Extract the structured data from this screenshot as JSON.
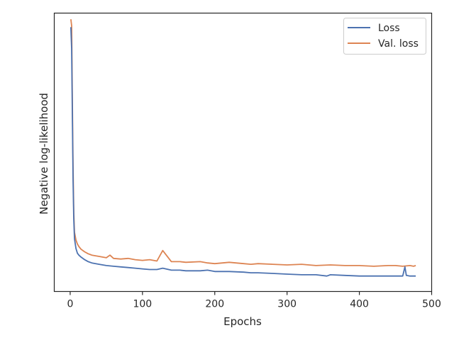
{
  "chart_data": {
    "type": "line",
    "title": "",
    "xlabel": "Epochs",
    "ylabel": "Negative log-likelihood",
    "xlim": [
      -22,
      500
    ],
    "x_ticks": [
      0,
      100,
      200,
      300,
      400,
      500
    ],
    "y_ticks_shown": false,
    "grid": false,
    "legend_position": "upper right",
    "series": [
      {
        "name": "Loss",
        "color": "#4c72b0",
        "x": [
          1,
          2,
          3,
          4,
          5,
          6,
          8,
          10,
          12,
          15,
          20,
          25,
          30,
          40,
          50,
          60,
          70,
          80,
          90,
          100,
          110,
          120,
          128,
          140,
          152,
          160,
          180,
          190,
          200,
          220,
          240,
          250,
          260,
          280,
          300,
          320,
          340,
          355,
          360,
          380,
          400,
          410,
          420,
          440,
          460,
          463,
          465,
          470,
          475,
          478
        ],
        "values": [
          43.3,
          40.0,
          30.0,
          20.0,
          14.0,
          11.0,
          9.5,
          8.8,
          8.5,
          8.2,
          7.8,
          7.5,
          7.3,
          7.1,
          6.9,
          6.8,
          6.7,
          6.6,
          6.5,
          6.4,
          6.3,
          6.3,
          6.5,
          6.2,
          6.2,
          6.1,
          6.1,
          6.2,
          6.0,
          6.0,
          5.9,
          5.8,
          5.8,
          5.7,
          5.6,
          5.5,
          5.5,
          5.3,
          5.5,
          5.4,
          5.3,
          5.3,
          5.3,
          5.3,
          5.3,
          6.7,
          5.4,
          5.3,
          5.3,
          5.3
        ]
      },
      {
        "name": "Val. loss",
        "color": "#dd8452",
        "x": [
          1,
          2,
          3,
          4,
          5,
          6,
          8,
          10,
          12,
          15,
          20,
          25,
          30,
          40,
          50,
          55,
          60,
          70,
          80,
          90,
          100,
          110,
          120,
          128,
          140,
          152,
          160,
          180,
          190,
          200,
          220,
          240,
          250,
          260,
          280,
          300,
          320,
          340,
          360,
          380,
          400,
          420,
          440,
          450,
          460,
          470,
          475,
          478
        ],
        "values": [
          44.5,
          43.5,
          32.0,
          22.0,
          15.0,
          12.0,
          10.8,
          10.2,
          9.8,
          9.4,
          9.0,
          8.7,
          8.5,
          8.3,
          8.1,
          8.5,
          8.0,
          7.9,
          8.0,
          7.8,
          7.7,
          7.8,
          7.6,
          9.2,
          7.5,
          7.5,
          7.4,
          7.5,
          7.3,
          7.2,
          7.4,
          7.2,
          7.1,
          7.2,
          7.1,
          7.0,
          7.1,
          6.9,
          7.0,
          6.9,
          6.9,
          6.8,
          6.9,
          6.9,
          6.8,
          6.9,
          6.8,
          6.9
        ]
      }
    ]
  }
}
